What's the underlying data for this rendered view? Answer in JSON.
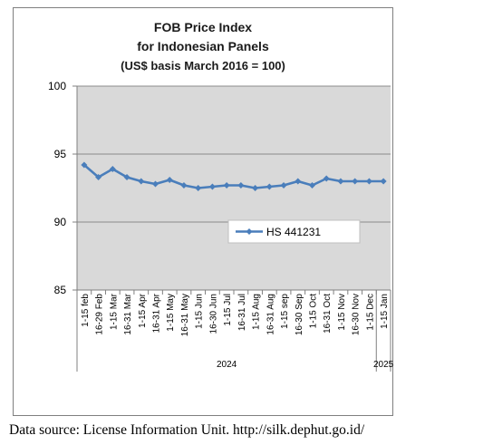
{
  "chart_data": {
    "type": "line",
    "title_lines": [
      "FOB Price Index",
      "for Indonesian Panels",
      "(US$ basis March 2016 = 100)"
    ],
    "categories": [
      "1-15 feb",
      "16-29 Feb",
      "1-15 Mar",
      "16-31 Mar",
      "1-15 Apr",
      "16-31 Apr",
      "1-15 May",
      "16-31 May",
      "1-15 Jun",
      "16-30 Jun",
      "1-15 Jul",
      "16-31 Jul",
      "1-15 Aug",
      "16-31 Aug",
      "1-15 sep",
      "16-30 Sep",
      "1-15 Oct",
      "16-31 Oct",
      "1-15 Nov",
      "16-30 Nov",
      "1-15 Dec",
      "1-15 Jan"
    ],
    "year_groups": [
      {
        "label": "2024",
        "start": 0,
        "end": 20
      },
      {
        "label": "2025",
        "start": 21,
        "end": 21
      }
    ],
    "series": [
      {
        "name": "HS 441231",
        "color": "#4a7ebb",
        "values": [
          94.2,
          93.3,
          93.9,
          93.3,
          93.0,
          92.8,
          93.1,
          92.7,
          92.5,
          92.6,
          92.7,
          92.7,
          92.5,
          92.6,
          92.7,
          93.0,
          92.7,
          93.2,
          93.0,
          93.0,
          93.0,
          93.0
        ]
      }
    ],
    "yticks": [
      85,
      90,
      95,
      100
    ],
    "ylim": [
      85,
      100
    ],
    "grid": true,
    "legend_position": "inside-right"
  },
  "colors": {
    "plot_bg": "#d9d9d9",
    "grid": "#8c8c8c",
    "line": "#4a7ebb"
  },
  "source_note": "Data source: License Information Unit. http://silk.dephut.go.id/"
}
